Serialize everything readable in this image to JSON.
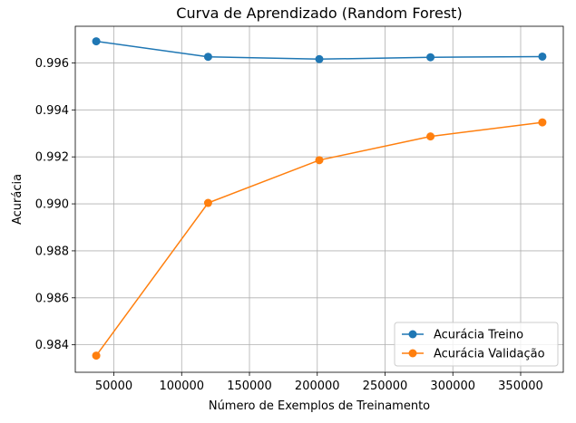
{
  "chart_data": {
    "type": "line",
    "title": "Curva de Aprendizado (Random Forest)",
    "xlabel": "Número de Exemplos de Treinamento",
    "ylabel": "Acurácia",
    "x": [
      37000,
      119500,
      201500,
      283500,
      366000
    ],
    "series": [
      {
        "name": "Acurácia Treino",
        "color": "#1f77b4",
        "values": [
          0.99692,
          0.99626,
          0.99616,
          0.99624,
          0.99627
        ]
      },
      {
        "name": "Acurácia Validação",
        "color": "#ff7f0e",
        "values": [
          0.98354,
          0.99004,
          0.99186,
          0.99287,
          0.99347
        ]
      }
    ],
    "xlim": [
      21550,
      381450
    ],
    "ylim": [
      0.98283,
      0.99756
    ],
    "xticks": [
      50000,
      100000,
      150000,
      200000,
      250000,
      300000,
      350000
    ],
    "xtick_labels": [
      "50000",
      "100000",
      "150000",
      "200000",
      "250000",
      "300000",
      "350000"
    ],
    "yticks": [
      0.984,
      0.986,
      0.988,
      0.99,
      0.992,
      0.994,
      0.996
    ],
    "ytick_labels": [
      "0.984",
      "0.986",
      "0.988",
      "0.990",
      "0.992",
      "0.994",
      "0.996"
    ],
    "grid": true,
    "legend_position": "lower-right"
  }
}
